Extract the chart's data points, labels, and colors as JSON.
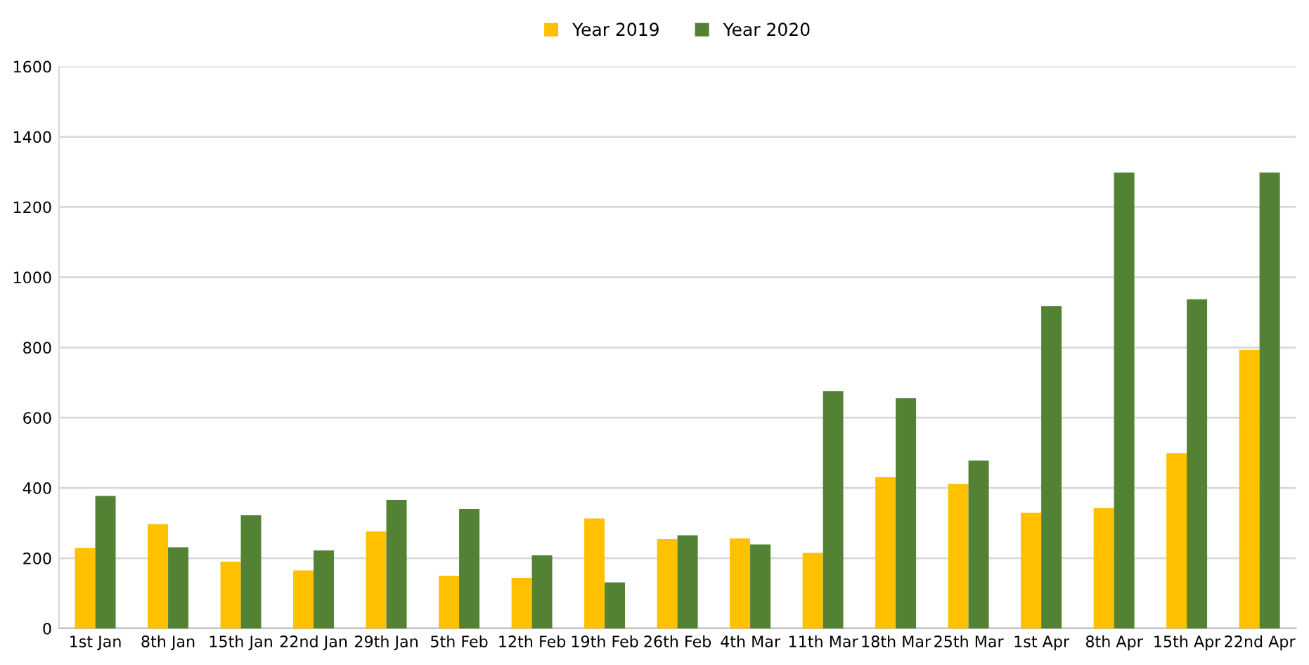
{
  "chart_data": {
    "type": "bar",
    "categories": [
      "1st Jan",
      "8th Jan",
      "15th Jan",
      "22nd Jan",
      "29th Jan",
      "5th Feb",
      "12th Feb",
      "19th Feb",
      "26th Feb",
      "4th Mar",
      "11th Mar",
      "18th Mar",
      "25th Mar",
      "1st Apr",
      "8th Apr",
      "15th Apr",
      "22nd Apr"
    ],
    "series": [
      {
        "name": "Year 2019",
        "color": "#ffc000",
        "values": [
          229,
          297,
          190,
          165,
          276,
          150,
          144,
          313,
          254,
          256,
          215,
          431,
          412,
          329,
          343,
          499,
          793
        ]
      },
      {
        "name": "Year 2020",
        "color": "#548235",
        "values": [
          377,
          231,
          322,
          222,
          366,
          340,
          208,
          131,
          265,
          239,
          676,
          656,
          478,
          918,
          1298,
          937,
          1298
        ]
      }
    ],
    "ylim": [
      0,
      1600
    ],
    "yticks": [
      0,
      200,
      400,
      600,
      800,
      1000,
      1200,
      1400,
      1600
    ],
    "grid": "y",
    "legend": "top"
  }
}
